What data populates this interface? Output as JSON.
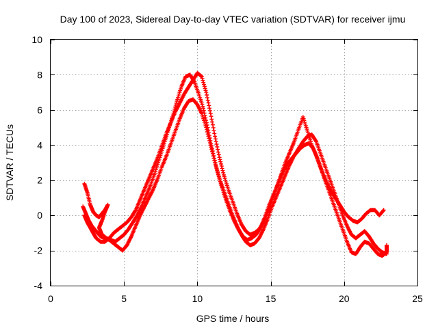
{
  "chart_data": {
    "type": "scatter",
    "title": "Day 100 of 2023, Sidereal Day-to-day VTEC variation (SDTVAR) for receiver ijmu",
    "xlabel": "GPS time / hours",
    "ylabel": "SDTVAR / TECUs",
    "xlim": [
      0,
      25
    ],
    "ylim": [
      -4,
      10
    ],
    "xticks": [
      0,
      5,
      10,
      15,
      20,
      25
    ],
    "xtick_labels": [
      "0",
      "5",
      "10",
      "15",
      "20",
      "25"
    ],
    "yticks": [
      -4,
      -2,
      0,
      2,
      4,
      6,
      8,
      10
    ],
    "ytick_labels": [
      "-4",
      "-2",
      "0",
      "2",
      "4",
      "6",
      "8",
      "10"
    ],
    "grid": true,
    "marker": "+",
    "color": "#ff0000",
    "series": [
      {
        "name": "trace-1",
        "points": [
          [
            2.3,
            1.8
          ],
          [
            2.5,
            1.3
          ],
          [
            2.7,
            0.6
          ],
          [
            2.9,
            0.2
          ],
          [
            3.1,
            0.0
          ],
          [
            3.3,
            -0.1
          ],
          [
            3.5,
            0.1
          ],
          [
            3.7,
            0.3
          ],
          [
            3.9,
            0.6
          ],
          [
            3.7,
            0.2
          ],
          [
            3.5,
            -0.3
          ],
          [
            3.3,
            -0.7
          ],
          [
            3.5,
            -1.1
          ],
          [
            3.8,
            -1.3
          ],
          [
            4.1,
            -1.4
          ],
          [
            4.4,
            -1.5
          ],
          [
            4.7,
            -1.3
          ],
          [
            5.0,
            -1.1
          ],
          [
            5.3,
            -0.8
          ],
          [
            5.6,
            -0.4
          ],
          [
            5.9,
            0.0
          ],
          [
            6.2,
            0.5
          ],
          [
            6.5,
            1.1
          ],
          [
            6.8,
            1.7
          ],
          [
            7.1,
            2.4
          ],
          [
            7.4,
            3.2
          ],
          [
            7.7,
            4.0
          ],
          [
            8.0,
            4.8
          ],
          [
            8.3,
            5.6
          ],
          [
            8.6,
            6.5
          ],
          [
            8.9,
            7.3
          ],
          [
            9.2,
            7.9
          ],
          [
            9.5,
            8.0
          ],
          [
            9.8,
            7.6
          ],
          [
            10.1,
            6.9
          ],
          [
            10.4,
            6.1
          ],
          [
            10.7,
            5.0
          ],
          [
            11.0,
            3.8
          ],
          [
            11.3,
            2.7
          ],
          [
            11.6,
            1.8
          ],
          [
            11.9,
            1.0
          ],
          [
            12.2,
            0.3
          ],
          [
            12.5,
            -0.3
          ],
          [
            12.8,
            -0.8
          ],
          [
            13.1,
            -1.2
          ],
          [
            13.4,
            -1.4
          ],
          [
            13.7,
            -1.3
          ],
          [
            14.0,
            -1.1
          ],
          [
            14.3,
            -0.7
          ],
          [
            14.6,
            -0.1
          ],
          [
            14.9,
            0.6
          ],
          [
            15.2,
            1.2
          ],
          [
            15.5,
            1.8
          ],
          [
            15.8,
            2.4
          ],
          [
            16.1,
            2.9
          ],
          [
            16.4,
            3.2
          ],
          [
            16.7,
            3.5
          ],
          [
            17.0,
            3.8
          ],
          [
            17.3,
            4.0
          ],
          [
            17.6,
            4.1
          ],
          [
            17.9,
            3.8
          ],
          [
            18.2,
            3.2
          ],
          [
            18.5,
            2.5
          ],
          [
            18.8,
            1.9
          ],
          [
            19.1,
            1.4
          ],
          [
            19.4,
            1.0
          ],
          [
            19.7,
            0.6
          ],
          [
            20.0,
            0.2
          ],
          [
            20.3,
            -0.1
          ],
          [
            20.6,
            -0.3
          ],
          [
            20.9,
            -0.4
          ],
          [
            21.2,
            -0.2
          ],
          [
            21.5,
            0.1
          ],
          [
            21.8,
            0.3
          ],
          [
            22.1,
            0.3
          ],
          [
            22.4,
            0.0
          ],
          [
            22.7,
            0.3
          ]
        ]
      },
      {
        "name": "trace-2",
        "points": [
          [
            2.2,
            0.5
          ],
          [
            2.4,
            0.1
          ],
          [
            2.6,
            -0.3
          ],
          [
            2.8,
            -0.6
          ],
          [
            3.0,
            -0.8
          ],
          [
            3.2,
            -1.0
          ],
          [
            3.4,
            -1.2
          ],
          [
            3.7,
            -1.3
          ],
          [
            4.0,
            -1.4
          ],
          [
            4.3,
            -1.6
          ],
          [
            4.6,
            -1.8
          ],
          [
            4.9,
            -2.0
          ],
          [
            5.2,
            -1.7
          ],
          [
            5.5,
            -1.2
          ],
          [
            5.8,
            -0.6
          ],
          [
            6.1,
            0.0
          ],
          [
            6.4,
            0.5
          ],
          [
            6.7,
            1.0
          ],
          [
            7.0,
            1.5
          ],
          [
            7.3,
            2.1
          ],
          [
            7.6,
            2.8
          ],
          [
            7.9,
            3.4
          ],
          [
            8.2,
            4.1
          ],
          [
            8.5,
            4.8
          ],
          [
            8.8,
            5.5
          ],
          [
            9.1,
            6.1
          ],
          [
            9.4,
            6.5
          ],
          [
            9.7,
            6.6
          ],
          [
            10.0,
            6.3
          ],
          [
            10.3,
            5.8
          ],
          [
            10.6,
            5.0
          ],
          [
            10.9,
            4.0
          ],
          [
            11.2,
            3.0
          ],
          [
            11.5,
            2.1
          ],
          [
            11.8,
            1.4
          ],
          [
            12.1,
            0.7
          ],
          [
            12.4,
            0.0
          ],
          [
            12.7,
            -0.6
          ],
          [
            13.0,
            -1.1
          ],
          [
            13.3,
            -1.5
          ],
          [
            13.6,
            -1.7
          ],
          [
            13.9,
            -1.6
          ],
          [
            14.2,
            -1.3
          ],
          [
            14.5,
            -0.8
          ],
          [
            14.8,
            -0.2
          ],
          [
            15.1,
            0.5
          ],
          [
            15.4,
            1.1
          ],
          [
            15.7,
            1.7
          ],
          [
            16.0,
            2.3
          ],
          [
            16.3,
            2.9
          ],
          [
            16.6,
            3.4
          ],
          [
            16.9,
            3.8
          ],
          [
            17.2,
            4.2
          ],
          [
            17.5,
            4.5
          ],
          [
            17.8,
            4.6
          ],
          [
            18.1,
            4.2
          ],
          [
            18.4,
            3.5
          ],
          [
            18.7,
            2.8
          ],
          [
            19.0,
            2.1
          ],
          [
            19.3,
            1.4
          ],
          [
            19.6,
            0.7
          ],
          [
            19.9,
            0.0
          ],
          [
            20.2,
            -0.6
          ],
          [
            20.5,
            -1.1
          ],
          [
            20.8,
            -1.3
          ],
          [
            21.1,
            -1.1
          ],
          [
            21.4,
            -0.9
          ],
          [
            21.7,
            -1.2
          ],
          [
            22.0,
            -1.6
          ],
          [
            22.3,
            -1.9
          ],
          [
            22.6,
            -2.1
          ],
          [
            22.9,
            -2.2
          ]
        ]
      },
      {
        "name": "trace-3",
        "points": [
          [
            2.3,
            0.0
          ],
          [
            2.5,
            -0.4
          ],
          [
            2.7,
            -0.7
          ],
          [
            2.9,
            -1.0
          ],
          [
            3.1,
            -1.3
          ],
          [
            3.4,
            -1.5
          ],
          [
            3.7,
            -1.5
          ],
          [
            4.0,
            -1.3
          ],
          [
            4.3,
            -1.0
          ],
          [
            4.6,
            -0.8
          ],
          [
            4.9,
            -0.6
          ],
          [
            5.2,
            -0.4
          ],
          [
            5.5,
            -0.1
          ],
          [
            5.8,
            0.3
          ],
          [
            6.1,
            0.9
          ],
          [
            6.4,
            1.5
          ],
          [
            6.7,
            2.1
          ],
          [
            7.0,
            2.7
          ],
          [
            7.3,
            3.3
          ],
          [
            7.6,
            4.0
          ],
          [
            7.9,
            4.7
          ],
          [
            8.2,
            5.3
          ],
          [
            8.5,
            5.9
          ],
          [
            8.8,
            6.4
          ],
          [
            9.1,
            6.9
          ],
          [
            9.4,
            7.3
          ],
          [
            9.7,
            7.7
          ],
          [
            10.0,
            8.1
          ],
          [
            10.3,
            7.9
          ],
          [
            10.6,
            7.0
          ],
          [
            10.9,
            5.8
          ],
          [
            11.2,
            4.5
          ],
          [
            11.5,
            3.3
          ],
          [
            11.8,
            2.3
          ],
          [
            12.1,
            1.5
          ],
          [
            12.4,
            0.8
          ],
          [
            12.7,
            0.1
          ],
          [
            13.0,
            -0.5
          ],
          [
            13.3,
            -0.9
          ],
          [
            13.6,
            -1.1
          ],
          [
            13.9,
            -1.0
          ],
          [
            14.2,
            -0.8
          ],
          [
            14.5,
            -0.4
          ],
          [
            14.8,
            0.2
          ],
          [
            15.1,
            0.9
          ],
          [
            15.4,
            1.6
          ],
          [
            15.7,
            2.3
          ],
          [
            16.0,
            3.0
          ],
          [
            16.3,
            3.6
          ],
          [
            16.6,
            4.2
          ],
          [
            16.9,
            4.9
          ],
          [
            17.2,
            5.6
          ],
          [
            17.5,
            4.8
          ],
          [
            17.8,
            4.0
          ],
          [
            18.1,
            3.4
          ],
          [
            18.4,
            2.7
          ],
          [
            18.7,
            2.0
          ],
          [
            19.0,
            1.3
          ],
          [
            19.3,
            0.6
          ],
          [
            19.6,
            -0.1
          ],
          [
            19.9,
            -0.8
          ],
          [
            20.2,
            -1.5
          ],
          [
            20.5,
            -2.1
          ],
          [
            20.8,
            -2.2
          ],
          [
            21.1,
            -1.8
          ],
          [
            21.4,
            -1.5
          ],
          [
            21.7,
            -1.6
          ],
          [
            22.0,
            -1.9
          ],
          [
            22.3,
            -2.2
          ],
          [
            22.6,
            -2.3
          ],
          [
            22.9,
            -2.1
          ],
          [
            22.9,
            -1.7
          ]
        ]
      }
    ]
  }
}
